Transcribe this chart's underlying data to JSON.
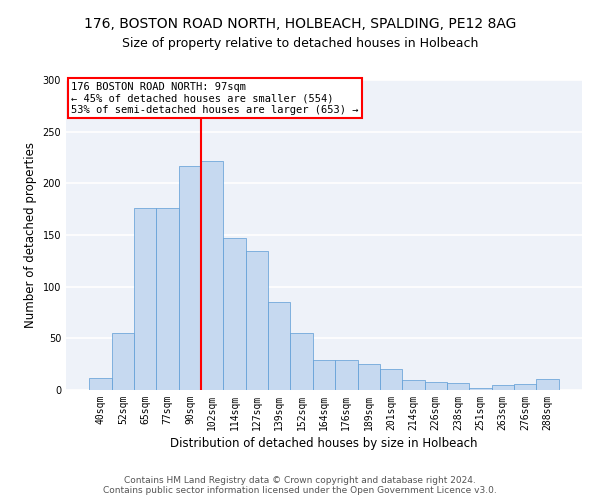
{
  "title1": "176, BOSTON ROAD NORTH, HOLBEACH, SPALDING, PE12 8AG",
  "title2": "Size of property relative to detached houses in Holbeach",
  "xlabel": "Distribution of detached houses by size in Holbeach",
  "ylabel": "Number of detached properties",
  "categories": [
    "40sqm",
    "52sqm",
    "65sqm",
    "77sqm",
    "90sqm",
    "102sqm",
    "114sqm",
    "127sqm",
    "139sqm",
    "152sqm",
    "164sqm",
    "176sqm",
    "189sqm",
    "201sqm",
    "214sqm",
    "226sqm",
    "238sqm",
    "251sqm",
    "263sqm",
    "276sqm",
    "288sqm"
  ],
  "values": [
    12,
    55,
    176,
    176,
    217,
    222,
    147,
    135,
    85,
    55,
    29,
    29,
    25,
    20,
    10,
    8,
    7,
    2,
    5,
    6,
    11
  ],
  "bar_color": "#c6d9f0",
  "bar_edge_color": "#5b9bd5",
  "vline_color": "red",
  "vline_x_index": 5,
  "annotation_text": "176 BOSTON ROAD NORTH: 97sqm\n← 45% of detached houses are smaller (554)\n53% of semi-detached houses are larger (653) →",
  "annotation_box_color": "white",
  "annotation_box_edge": "red",
  "ylim": [
    0,
    300
  ],
  "yticks": [
    0,
    50,
    100,
    150,
    200,
    250,
    300
  ],
  "footer": "Contains HM Land Registry data © Crown copyright and database right 2024.\nContains public sector information licensed under the Open Government Licence v3.0.",
  "bg_color": "#eef2f9",
  "grid_color": "white",
  "title1_fontsize": 10,
  "title2_fontsize": 9,
  "xlabel_fontsize": 8.5,
  "ylabel_fontsize": 8.5,
  "tick_fontsize": 7,
  "footer_fontsize": 6.5,
  "annotation_fontsize": 7.5
}
